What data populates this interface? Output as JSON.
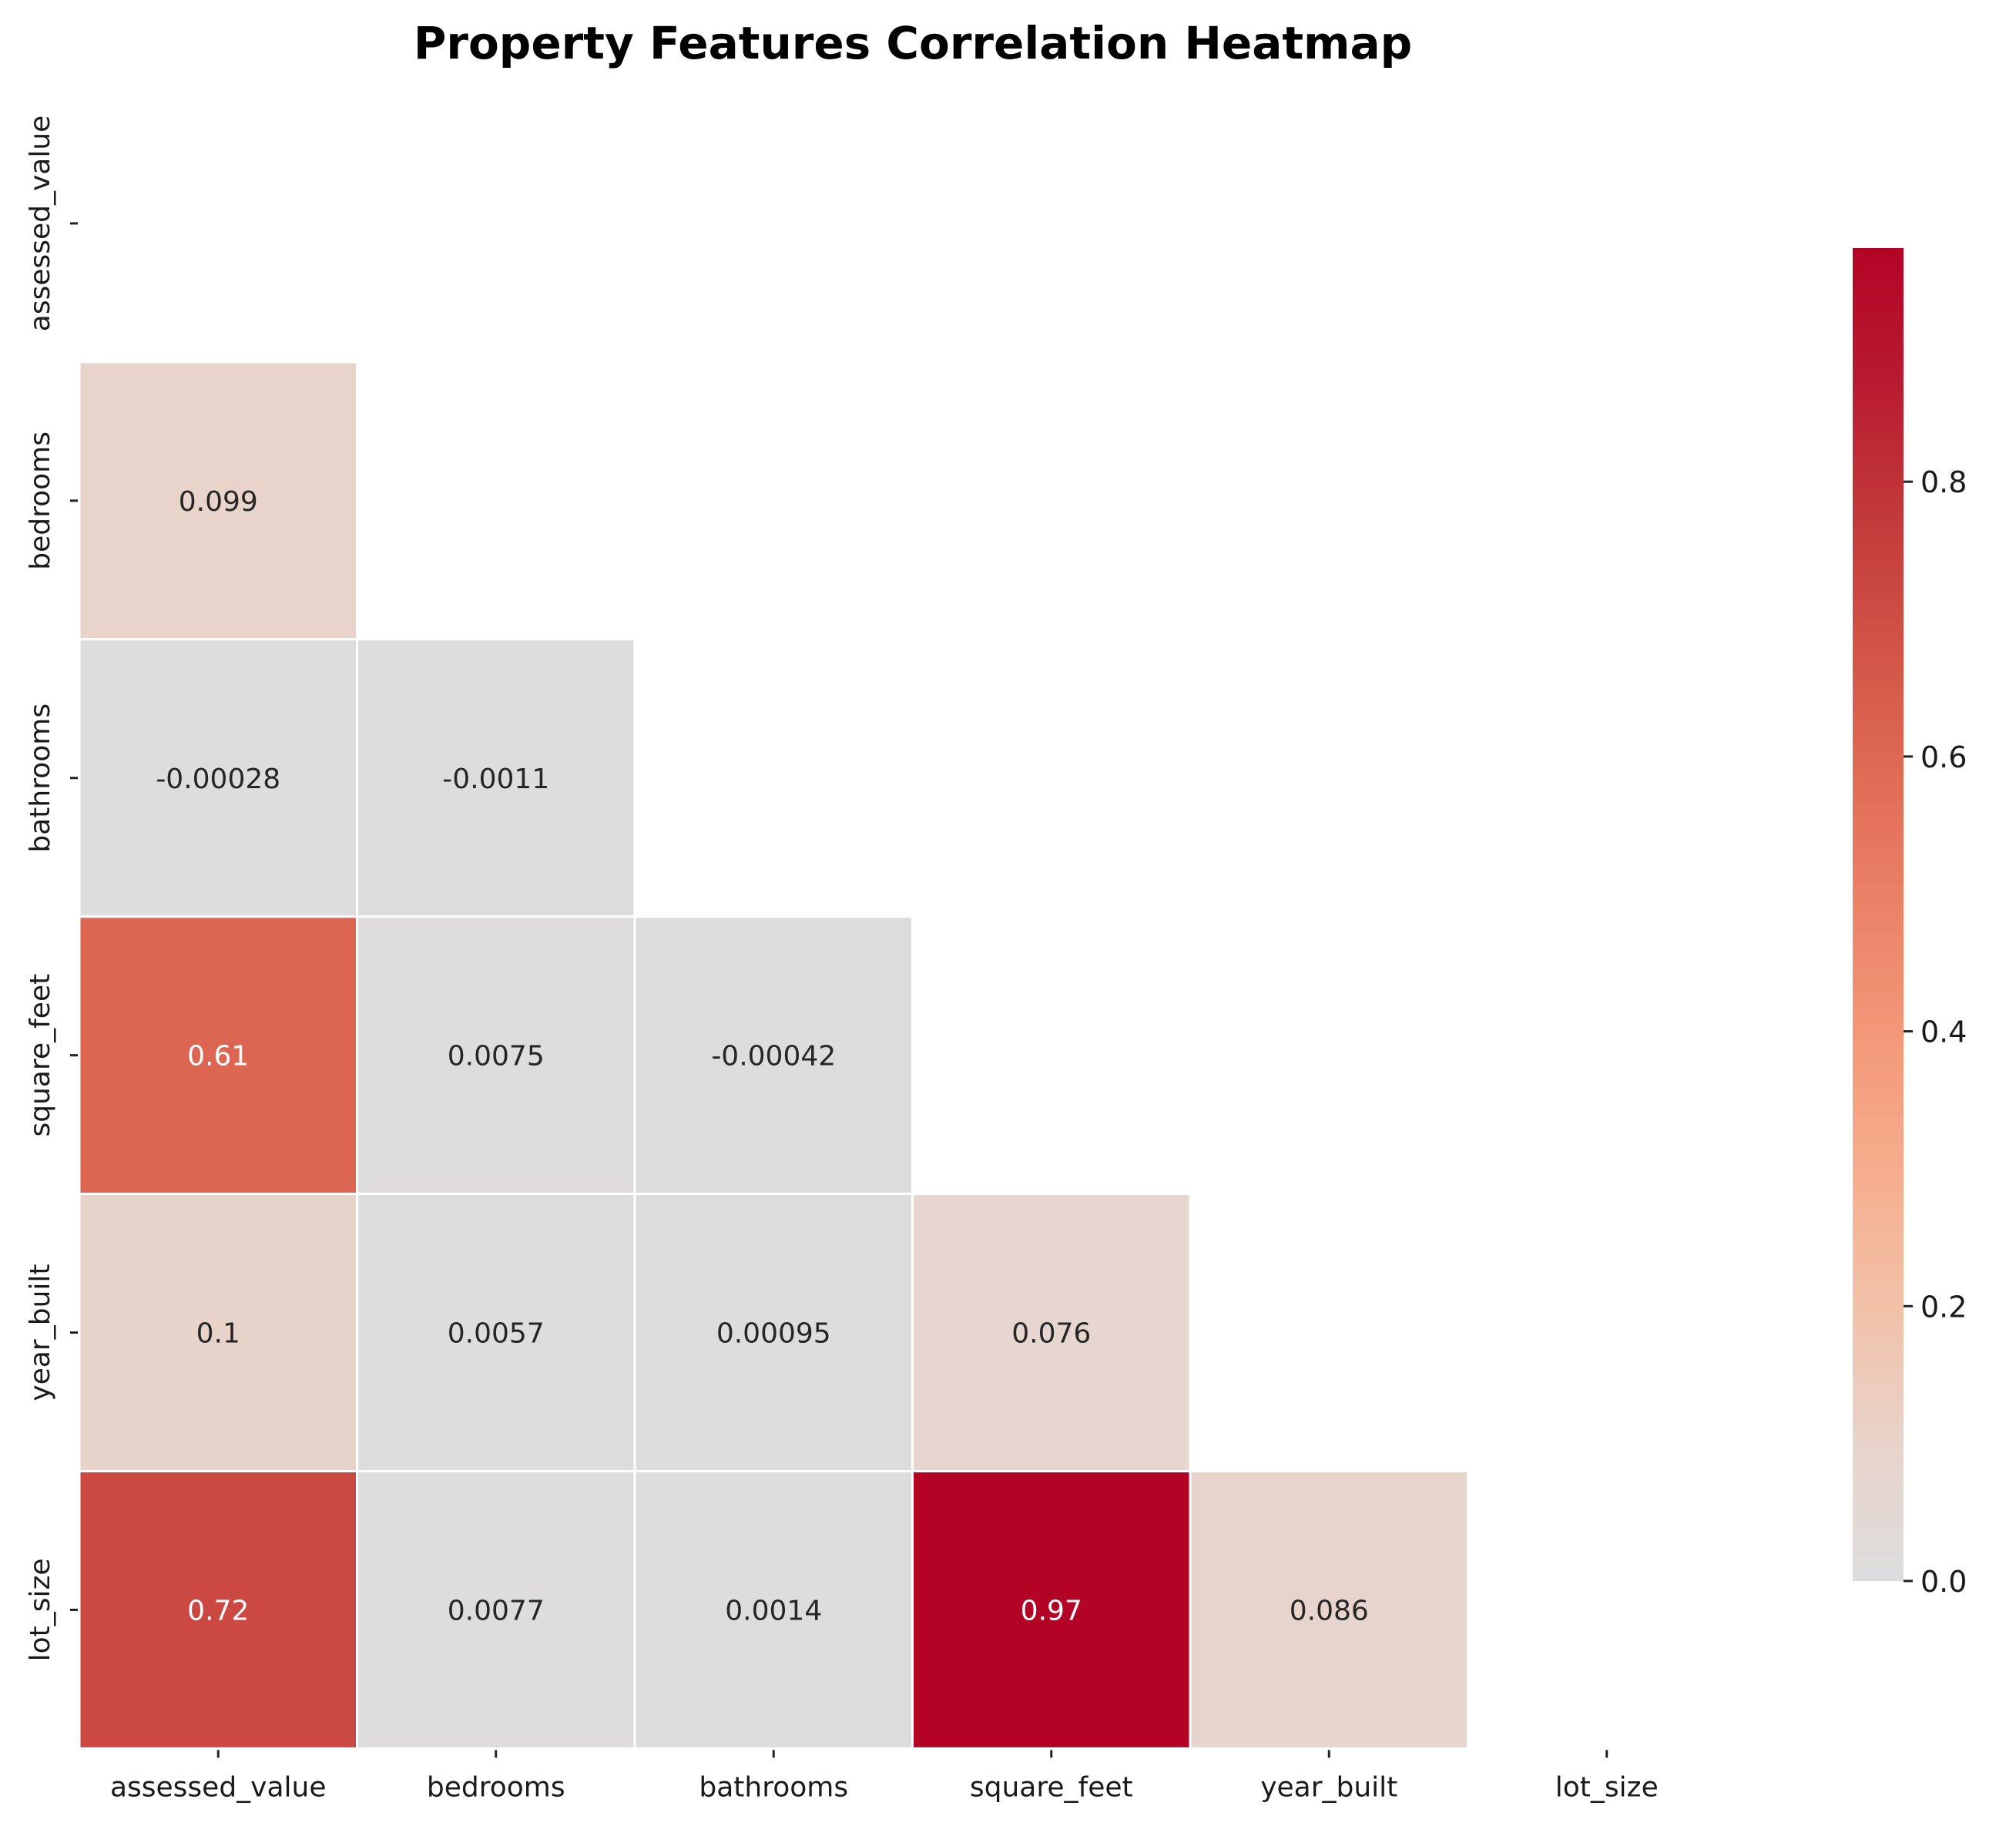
{
  "chart_data": {
    "type": "heatmap",
    "title": "Property Features Correlation Heatmap",
    "variables": [
      "assessed_value",
      "bedrooms",
      "bathrooms",
      "square_feet",
      "year_built",
      "lot_size"
    ],
    "mask": "upper-triangle-including-diagonal",
    "cells": [
      {
        "row": "bedrooms",
        "col": "assessed_value",
        "value": 0.099,
        "label": "0.099"
      },
      {
        "row": "bathrooms",
        "col": "assessed_value",
        "value": -0.00028,
        "label": "-0.00028"
      },
      {
        "row": "bathrooms",
        "col": "bedrooms",
        "value": -0.0011,
        "label": "-0.0011"
      },
      {
        "row": "square_feet",
        "col": "assessed_value",
        "value": 0.61,
        "label": "0.61"
      },
      {
        "row": "square_feet",
        "col": "bedrooms",
        "value": 0.0075,
        "label": "0.0075"
      },
      {
        "row": "square_feet",
        "col": "bathrooms",
        "value": -0.00042,
        "label": "-0.00042"
      },
      {
        "row": "year_built",
        "col": "assessed_value",
        "value": 0.1,
        "label": "0.1"
      },
      {
        "row": "year_built",
        "col": "bedrooms",
        "value": 0.0057,
        "label": "0.0057"
      },
      {
        "row": "year_built",
        "col": "bathrooms",
        "value": 0.00095,
        "label": "0.00095"
      },
      {
        "row": "year_built",
        "col": "square_feet",
        "value": 0.076,
        "label": "0.076"
      },
      {
        "row": "lot_size",
        "col": "assessed_value",
        "value": 0.72,
        "label": "0.72"
      },
      {
        "row": "lot_size",
        "col": "bedrooms",
        "value": 0.0077,
        "label": "0.0077"
      },
      {
        "row": "lot_size",
        "col": "bathrooms",
        "value": 0.0014,
        "label": "0.0014"
      },
      {
        "row": "lot_size",
        "col": "square_feet",
        "value": 0.97,
        "label": "0.97"
      },
      {
        "row": "lot_size",
        "col": "year_built",
        "value": 0.086,
        "label": "0.086"
      }
    ],
    "colorbar": {
      "colormap": "coolwarm",
      "center": 0,
      "range": [
        0,
        0.97
      ],
      "ticks": [
        0.0,
        0.2,
        0.4,
        0.6,
        0.8
      ],
      "tick_labels": [
        "0.0",
        "0.2",
        "0.4",
        "0.6",
        "0.8"
      ],
      "position": "right"
    },
    "grid": false
  }
}
